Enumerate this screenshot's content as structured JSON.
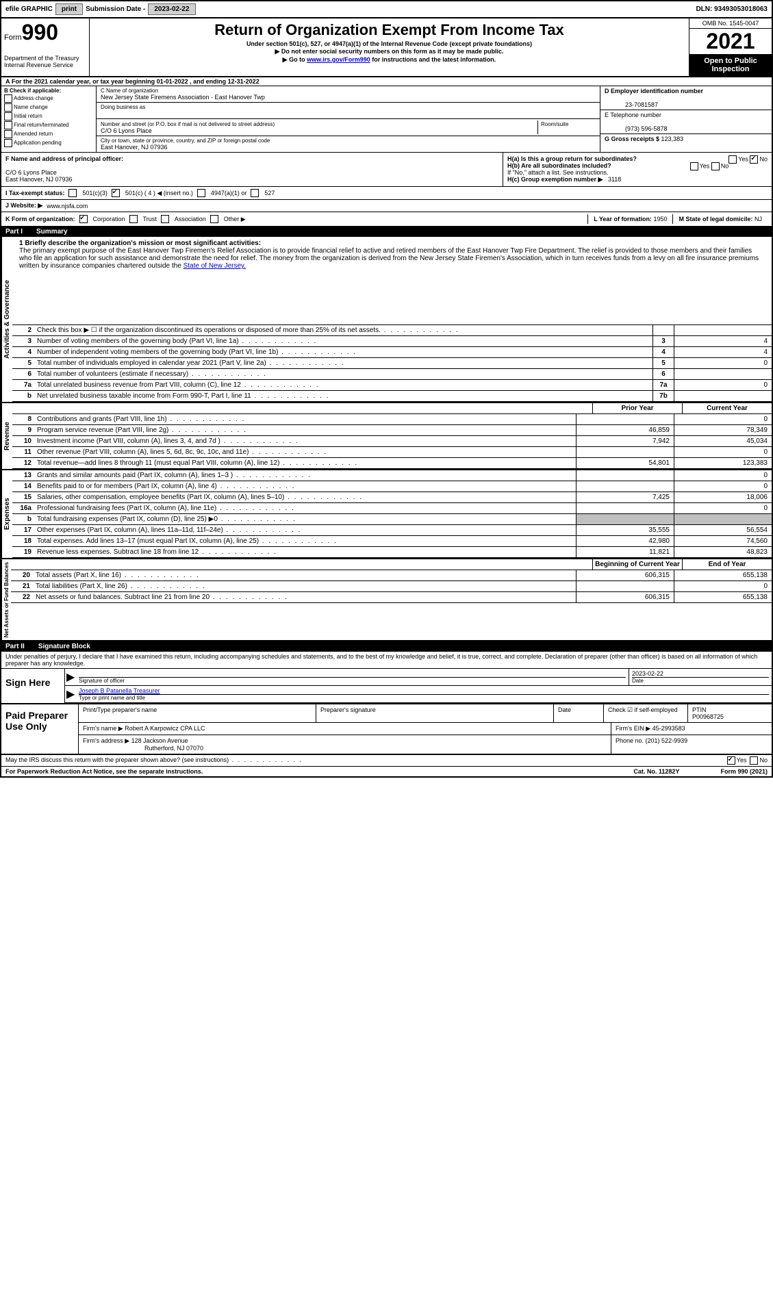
{
  "topbar": {
    "efile": "efile GRAPHIC",
    "print": "print",
    "sub_label": "Submission Date - ",
    "sub_date": "2023-02-22",
    "dln_label": "DLN: ",
    "dln": "93493053018063"
  },
  "header": {
    "form_word": "Form",
    "form_num": "990",
    "dept": "Department of the Treasury Internal Revenue Service",
    "title": "Return of Organization Exempt From Income Tax",
    "sub1": "Under section 501(c), 527, or 4947(a)(1) of the Internal Revenue Code (except private foundations)",
    "sub2_pre": "▶ Do not enter social security numbers on this form as it may be made public.",
    "sub3_pre": "▶ Go to ",
    "sub3_link": "www.irs.gov/Form990",
    "sub3_post": " for instructions and the latest information.",
    "omb": "OMB No. 1545-0047",
    "year": "2021",
    "open": "Open to Public Inspection"
  },
  "line_a": {
    "text_pre": "For the 2021 calendar year, or tax year beginning ",
    "start": "01-01-2022",
    "mid": " , and ending ",
    "end": "12-31-2022"
  },
  "box_b": {
    "title": "B Check if applicable:",
    "items": [
      "Address change",
      "Name change",
      "Initial return",
      "Final return/terminated",
      "Amended return",
      "Application pending"
    ]
  },
  "col_c": {
    "c_label": "C Name of organization",
    "org_name": "New Jersey State Firemens Association - East Hanover Twp",
    "dba_label": "Doing business as",
    "addr_label": "Number and street (or P.O. box if mail is not delivered to street address)",
    "room_label": "Room/suite",
    "addr": "C/O 6 Lyons Place",
    "city_label": "City or town, state or province, country, and ZIP or foreign postal code",
    "city": "East Hanover, NJ  07936"
  },
  "col_d": {
    "d_label": "D Employer identification number",
    "ein": "23-7081587",
    "e_label": "E Telephone number",
    "phone": "(973) 596-5878",
    "g_label": "G Gross receipts $ ",
    "gross": "123,383"
  },
  "f": {
    "label": "F  Name and address of principal officer:",
    "l1": "C/O 6 Lyons Place",
    "l2": "East Hanover, NJ  07936"
  },
  "h": {
    "a": "H(a)  Is this a group return for subordinates?",
    "a_yes": "Yes",
    "a_no_checked": "No",
    "b": "H(b)  Are all subordinates included?",
    "b_note": "If \"No,\" attach a list. See instructions.",
    "c": "H(c)  Group exemption number ▶",
    "c_val": "3118"
  },
  "i": {
    "label": "I  Tax-exempt status:",
    "opt1": "501(c)(3)",
    "opt2": "501(c) ( 4 ) ◀ (insert no.)",
    "opt3": "4947(a)(1) or",
    "opt4": "527"
  },
  "j": {
    "label": "J  Website: ▶",
    "val": "www.njsfa.com"
  },
  "k": {
    "label": "K Form of organization:",
    "opts": [
      "Corporation",
      "Trust",
      "Association",
      "Other ▶"
    ],
    "l_label": "L Year of formation: ",
    "l_val": "1950",
    "m_label": "M State of legal domicile: ",
    "m_val": "NJ"
  },
  "part1": {
    "tag": "Part I",
    "title": "Summary"
  },
  "mission": {
    "lead": "1 Briefly describe the organization's mission or most significant activities:",
    "text": "The primary exempt purpose of the East Hanover Twp Firemen's Relief Association is to provide financial relief to active and retired members of the East Hanover Twp Fire Department. The relief is provided to those members and their families who file an application for such assistance and demonstrate the need for relief. The money from the organization is derived from the New Jersey State Firemen's Association, which in turn receives funds from a levy on all fire insurance premiums written by insurance companies chartered outside the ",
    "link": "State of New Jersey."
  },
  "gov_rows": [
    {
      "n": "2",
      "d": "Check this box ▶ ☐ if the organization discontinued its operations or disposed of more than 25% of its net assets.",
      "box": "",
      "v": ""
    },
    {
      "n": "3",
      "d": "Number of voting members of the governing body (Part VI, line 1a)",
      "box": "3",
      "v": "4"
    },
    {
      "n": "4",
      "d": "Number of independent voting members of the governing body (Part VI, line 1b)",
      "box": "4",
      "v": "4"
    },
    {
      "n": "5",
      "d": "Total number of individuals employed in calendar year 2021 (Part V, line 2a)",
      "box": "5",
      "v": "0"
    },
    {
      "n": "6",
      "d": "Total number of volunteers (estimate if necessary)",
      "box": "6",
      "v": ""
    },
    {
      "n": "7a",
      "d": "Total unrelated business revenue from Part VIII, column (C), line 12",
      "box": "7a",
      "v": "0"
    },
    {
      "n": "b",
      "d": "Net unrelated business taxable income from Form 990-T, Part I, line 11",
      "box": "7b",
      "v": ""
    }
  ],
  "two_col": {
    "h1": "Prior Year",
    "h2": "Current Year"
  },
  "rev_rows": [
    {
      "n": "8",
      "d": "Contributions and grants (Part VIII, line 1h)",
      "c1": "",
      "c2": "0"
    },
    {
      "n": "9",
      "d": "Program service revenue (Part VIII, line 2g)",
      "c1": "46,859",
      "c2": "78,349"
    },
    {
      "n": "10",
      "d": "Investment income (Part VIII, column (A), lines 3, 4, and 7d )",
      "c1": "7,942",
      "c2": "45,034"
    },
    {
      "n": "11",
      "d": "Other revenue (Part VIII, column (A), lines 5, 6d, 8c, 9c, 10c, and 11e)",
      "c1": "",
      "c2": "0"
    },
    {
      "n": "12",
      "d": "Total revenue—add lines 8 through 11 (must equal Part VIII, column (A), line 12)",
      "c1": "54,801",
      "c2": "123,383"
    }
  ],
  "exp_rows": [
    {
      "n": "13",
      "d": "Grants and similar amounts paid (Part IX, column (A), lines 1–3 )",
      "c1": "",
      "c2": "0"
    },
    {
      "n": "14",
      "d": "Benefits paid to or for members (Part IX, column (A), line 4)",
      "c1": "",
      "c2": "0"
    },
    {
      "n": "15",
      "d": "Salaries, other compensation, employee benefits (Part IX, column (A), lines 5–10)",
      "c1": "7,425",
      "c2": "18,006"
    },
    {
      "n": "16a",
      "d": "Professional fundraising fees (Part IX, column (A), line 11e)",
      "c1": "",
      "c2": "0"
    },
    {
      "n": "b",
      "d": "Total fundraising expenses (Part IX, column (D), line 25) ▶0",
      "c1": "shaded",
      "c2": "shaded"
    },
    {
      "n": "17",
      "d": "Other expenses (Part IX, column (A), lines 11a–11d, 11f–24e)",
      "c1": "35,555",
      "c2": "56,554"
    },
    {
      "n": "18",
      "d": "Total expenses. Add lines 13–17 (must equal Part IX, column (A), line 25)",
      "c1": "42,980",
      "c2": "74,560"
    },
    {
      "n": "19",
      "d": "Revenue less expenses. Subtract line 18 from line 12",
      "c1": "11,821",
      "c2": "48,823"
    }
  ],
  "net_header": {
    "h1": "Beginning of Current Year",
    "h2": "End of Year"
  },
  "net_rows": [
    {
      "n": "20",
      "d": "Total assets (Part X, line 16)",
      "c1": "606,315",
      "c2": "655,138"
    },
    {
      "n": "21",
      "d": "Total liabilities (Part X, line 26)",
      "c1": "",
      "c2": "0"
    },
    {
      "n": "22",
      "d": "Net assets or fund balances. Subtract line 21 from line 20",
      "c1": "606,315",
      "c2": "655,138"
    }
  ],
  "part2": {
    "tag": "Part II",
    "title": "Signature Block"
  },
  "sig": {
    "intro": "Under penalties of perjury, I declare that I have examined this return, including accompanying schedules and statements, and to the best of my knowledge and belief, it is true, correct, and complete. Declaration of preparer (other than officer) is based on all information of which preparer has any knowledge.",
    "sign_here": "Sign Here",
    "sig_of_officer": "Signature of officer",
    "date_label": "Date",
    "date": "2023-02-22",
    "officer_name": "Joseph B Patanella  Treasurer",
    "type_label": "Type or print name and title"
  },
  "prep": {
    "title": "Paid Preparer Use Only",
    "h1": "Print/Type preparer's name",
    "h2": "Preparer's signature",
    "h3": "Date",
    "check_label": "Check ☑ if self-employed",
    "ptin_label": "PTIN",
    "ptin": "P00968725",
    "firm_name_label": "Firm's name      ▶ ",
    "firm_name": "Robert A Karpowicz CPA LLC",
    "firm_ein_label": "Firm's EIN ▶ ",
    "firm_ein": "45-2993583",
    "firm_addr_label": "Firm's address ▶ ",
    "firm_addr": "128 Jackson Avenue",
    "firm_city": "Rutherford, NJ  07070",
    "phone_label": "Phone no. ",
    "phone": "(201) 522-9939"
  },
  "discuss": {
    "text": "May the IRS discuss this return with the preparer shown above? (see instructions)",
    "yes": "Yes",
    "no": "No"
  },
  "footer": {
    "left": "For Paperwork Reduction Act Notice, see the separate instructions.",
    "mid": "Cat. No. 11282Y",
    "right": "Form 990 (2021)"
  },
  "vlabels": {
    "gov": "Activities & Governance",
    "rev": "Revenue",
    "exp": "Expenses",
    "net": "Net Assets or Fund Balances"
  }
}
